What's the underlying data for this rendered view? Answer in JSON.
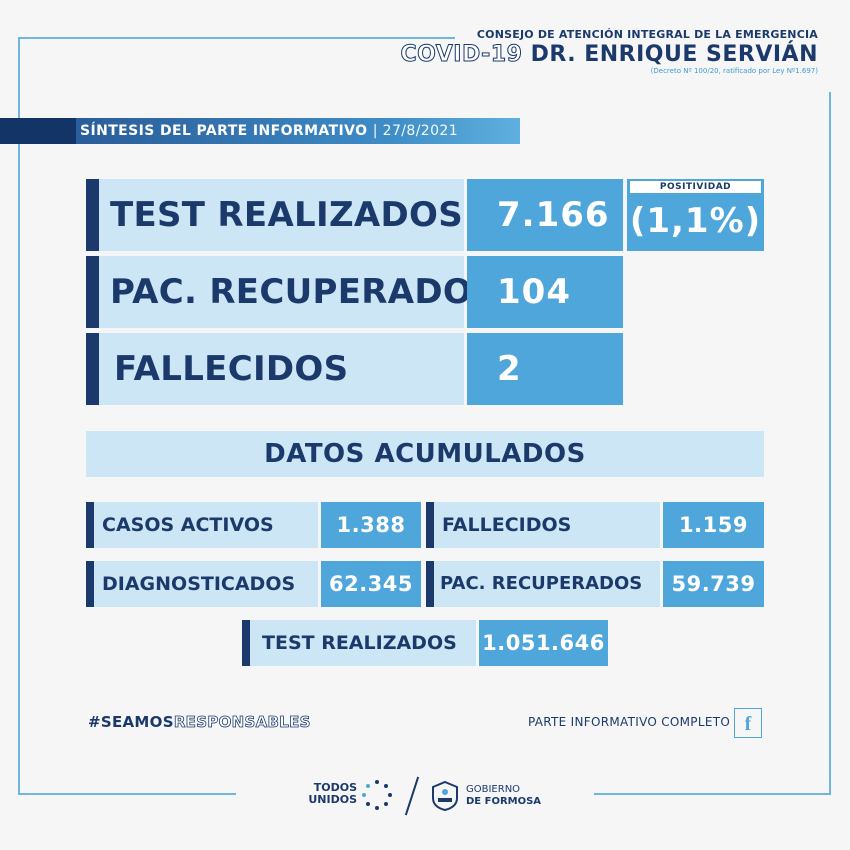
{
  "header": {
    "line1": "CONSEJO DE ATENCIÓN INTEGRAL DE LA EMERGENCIA",
    "covid": "COVID-19",
    "name": "DR. ENRIQUE SERVIÁN",
    "decree": "(Decreto Nº 100/20, ratificado por Ley Nº1.697)"
  },
  "ribbon": {
    "title": "SÍNTESIS DEL PARTE INFORMATIVO",
    "date": "| 27/8/2021"
  },
  "daily": {
    "tests_label": "TEST REALIZADOS",
    "tests_value": "7.166",
    "positivity_label": "POSITIVIDAD",
    "positivity_value": "(1,1%)",
    "recovered_label": "PAC. RECUPERADOS",
    "recovered_value": "104",
    "deaths_label": "FALLECIDOS",
    "deaths_value": "2"
  },
  "accumulated": {
    "title": "DATOS ACUMULADOS",
    "active_label": "CASOS ACTIVOS",
    "active_value": "1.388",
    "deaths_label": "FALLECIDOS",
    "deaths_value": "1.159",
    "diagnosed_label": "DIAGNOSTICADOS",
    "diagnosed_value": "62.345",
    "recovered_label": "PAC. RECUPERADOS",
    "recovered_value": "59.739",
    "tests_label": "TEST REALIZADOS",
    "tests_value": "1.051.646"
  },
  "footer": {
    "hashtag_a": "#SEAMOS",
    "hashtag_b": "RESPONSABLES",
    "full_report": "PARTE INFORMATIVO COMPLETO",
    "fb_glyph": "f",
    "todos": "TODOS",
    "unidos": "UNIDOS",
    "gobierno": "GOBIERNO",
    "formosa": "DE FORMOSA"
  },
  "colors": {
    "navy": "#1b3a6b",
    "blue": "#4ea6da",
    "light": "#cde6f5"
  }
}
